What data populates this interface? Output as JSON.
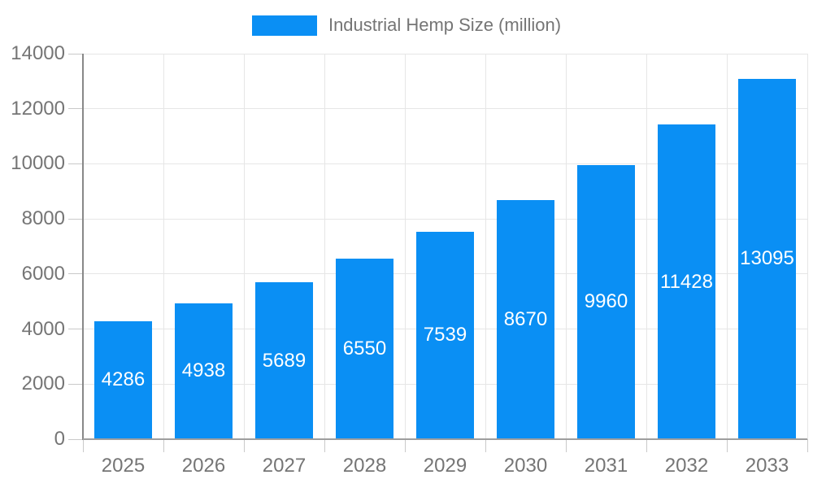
{
  "chart_data": {
    "type": "bar",
    "title": "Industrial Hemp Size (million)",
    "categories": [
      "2025",
      "2026",
      "2027",
      "2028",
      "2029",
      "2030",
      "2031",
      "2032",
      "2033"
    ],
    "values": [
      4286,
      4938,
      5689,
      6550,
      7539,
      8670,
      9960,
      11428,
      13095
    ],
    "bar_labels": [
      "4286",
      "4938",
      "5689",
      "6550",
      "7539",
      "8670",
      "9960",
      "11428",
      "13095"
    ],
    "xlabel": "",
    "ylabel": "",
    "ylim": [
      0,
      14000
    ],
    "yticks": [
      0,
      2000,
      4000,
      6000,
      8000,
      10000,
      12000,
      14000
    ],
    "ytick_labels": [
      "0",
      "2000",
      "4000",
      "6000",
      "8000",
      "10000",
      "12000",
      "14000"
    ],
    "grid": true,
    "legend_position": "top"
  },
  "legend": {
    "label": "Industrial Hemp Size (million)"
  },
  "colors": {
    "bar": "#0a8ff4",
    "axis_text": "#757575",
    "bar_label_text": "#ffffff",
    "gridline": "#e6e6e6",
    "tick": "#c9c9c9",
    "y_axis_line": "#888888",
    "x_axis_line": "#9e9e9e",
    "background": "#ffffff"
  }
}
